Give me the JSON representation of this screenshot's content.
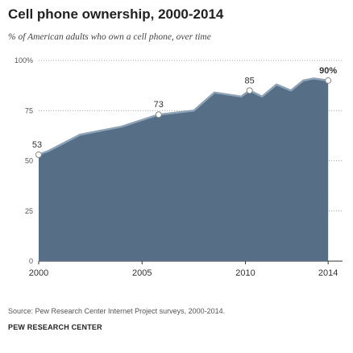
{
  "header": {
    "title": "Cell phone ownership, 2000-2014",
    "subtitle": "% of American adults who own a cell phone, over time"
  },
  "footer": {
    "source": "Source: Pew Research Center Internet Project surveys, 2000-2014.",
    "brand": "PEW RESEARCH CENTER"
  },
  "colors": {
    "area_fill": "#566f86",
    "area_stroke": "#8ea3b6",
    "grid": "#aaaaaa",
    "marker_fill": "#ffffff",
    "text": "#333333"
  },
  "chart_data": {
    "type": "area",
    "title": "Cell phone ownership, 2000-2014",
    "subtitle": "% of American adults who own a cell phone, over time",
    "xlabel": "",
    "ylabel": "",
    "xlim": [
      2000,
      2014.5
    ],
    "ylim": [
      0,
      100
    ],
    "x_ticks": [
      2000,
      2005,
      2010,
      2014
    ],
    "y_ticks": [
      0,
      25,
      50,
      75,
      100
    ],
    "y_tick_labels": [
      "0",
      "25",
      "50",
      "75",
      "100%"
    ],
    "grid": "horizontal dotted",
    "series": [
      {
        "x": [
          2000,
          2000.5,
          2002,
          2004,
          2005.8,
          2007.5,
          2008.5,
          2009.8,
          2010.2,
          2010.8,
          2011.5,
          2012.2,
          2012.8,
          2013.3,
          2014
        ],
        "values": [
          53,
          55,
          63,
          67,
          73,
          75,
          84,
          82,
          85,
          82,
          88,
          85,
          90,
          91,
          90
        ]
      }
    ],
    "annotations": [
      {
        "x": 2000,
        "y": 53,
        "label": "53",
        "bold": false
      },
      {
        "x": 2005.8,
        "y": 73,
        "label": "73",
        "bold": false
      },
      {
        "x": 2010.2,
        "y": 85,
        "label": "85",
        "bold": false
      },
      {
        "x": 2014,
        "y": 90,
        "label": "90%",
        "bold": true
      }
    ]
  }
}
